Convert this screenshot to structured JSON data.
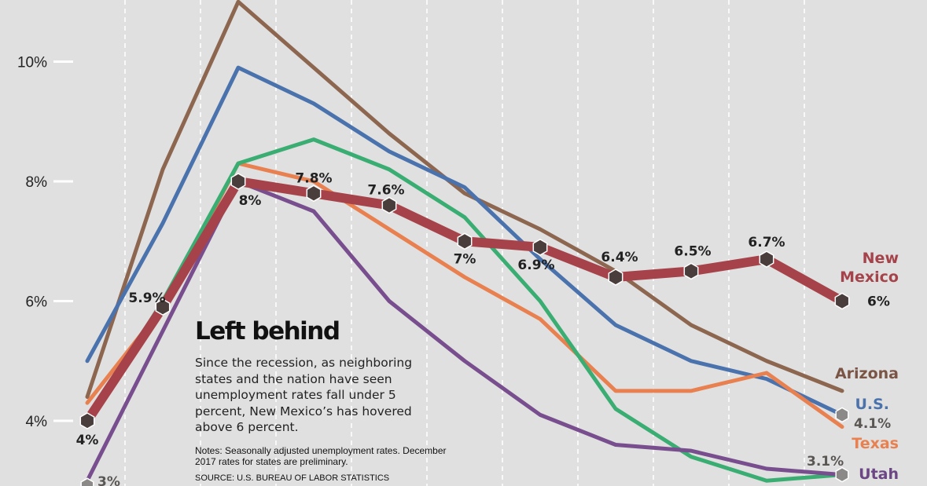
{
  "chart_data": {
    "type": "line",
    "title": "Left behind",
    "description": "Since the recession, as neighboring states and the nation have seen unemployment rates fall under 5 percent, New Mexico’s has hovered above 6 percent.",
    "notes": "Notes: Seasonally adjusted unemployment rates. December 2017 rates for states are preliminary.",
    "source": "SOURCE: U.S. BUREAU OF LABOR STATISTICS",
    "ylim": [
      3,
      11
    ],
    "y_ticks": [
      {
        "value": 4,
        "label": "4%"
      },
      {
        "value": 6,
        "label": "6%"
      },
      {
        "value": 8,
        "label": "8%"
      },
      {
        "value": 10,
        "label": "10%"
      }
    ],
    "grid": "vertical dashed",
    "x": [
      0,
      1,
      2,
      3,
      4,
      5,
      6,
      7,
      8,
      9,
      10
    ],
    "series": [
      {
        "name": "Arizona",
        "color": "#8d6650",
        "label_color": "#7a5444",
        "values": [
          4.4,
          8.2,
          11.0,
          9.9,
          8.8,
          7.8,
          7.2,
          6.5,
          5.6,
          5.0,
          4.5
        ]
      },
      {
        "name": "U.S.",
        "color": "#4a72ad",
        "label_color": "#4a72ad",
        "values": [
          5.0,
          7.3,
          9.9,
          9.3,
          8.5,
          7.9,
          6.7,
          5.6,
          5.0,
          4.7,
          4.1
        ],
        "end_label": "4.1%"
      },
      {
        "name": "Texas",
        "color": "#e8804f",
        "label_color": "#e8804f",
        "values": [
          4.3,
          5.9,
          8.3,
          8.0,
          7.2,
          6.4,
          5.7,
          4.5,
          4.5,
          4.8,
          3.9
        ]
      },
      {
        "name": "",
        "color": "#3aad72",
        "values": [
          4.0,
          6.0,
          8.3,
          8.7,
          8.2,
          7.4,
          6.0,
          4.2,
          3.4,
          3.0,
          3.1
        ]
      },
      {
        "name": "Utah",
        "color": "#784e8e",
        "label_color": "#6b4584",
        "values": [
          3.0,
          5.5,
          8.0,
          7.5,
          6.0,
          5.0,
          4.1,
          3.6,
          3.5,
          3.2,
          3.1
        ],
        "start_label": "3%",
        "end_label": "3.1%"
      },
      {
        "name": "New Mexico",
        "name_lines": [
          "New",
          "Mexico"
        ],
        "color": "#a6434a",
        "label_color": "#a6434a",
        "values": [
          4.0,
          5.9,
          8.0,
          7.8,
          7.6,
          7.0,
          6.9,
          6.4,
          6.5,
          6.7,
          6.0
        ],
        "point_labels": [
          "4%",
          "5.9%",
          "8%",
          "7.8%",
          "7.6%",
          "7%",
          "6.9%",
          "6.4%",
          "6.5%",
          "6.7%",
          "6%"
        ]
      }
    ]
  }
}
